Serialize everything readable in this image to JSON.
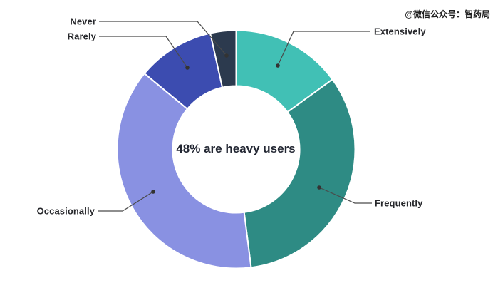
{
  "watermark": {
    "text": "@微信公众号：智药局"
  },
  "chart_data": {
    "type": "pie",
    "subtype": "donut",
    "title": "",
    "center_label": "48% are heavy users",
    "unit": "percent_estimated",
    "start_angle_deg": 0,
    "direction": "clockwise",
    "legend_position": "callout-labels",
    "grid": false,
    "segments": [
      {
        "label": "Extensively",
        "value": 15,
        "color": "#41c0b5"
      },
      {
        "label": "Frequently",
        "value": 33,
        "color": "#2e8b84"
      },
      {
        "label": "Occasionally",
        "value": 38,
        "color": "#8991e2"
      },
      {
        "label": "Rarely",
        "value": 10.5,
        "color": "#3c4cb0"
      },
      {
        "label": "Never",
        "value": 3.5,
        "color": "#2c3a4e"
      }
    ],
    "separator_color": "#ffffff",
    "callout_line_color": "#4a4a4a"
  }
}
